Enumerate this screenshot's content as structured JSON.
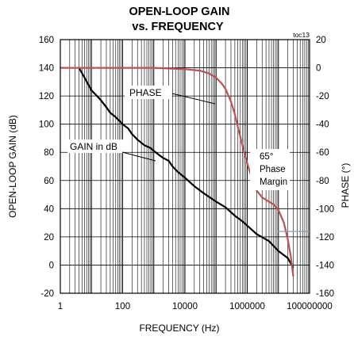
{
  "chart_data": {
    "type": "line",
    "title": "OPEN-LOOP GAIN",
    "subtitle": "vs. FREQUENCY",
    "code": "toc13",
    "xlabel": "FREQUENCY (Hz)",
    "ylabel_left": "OPEN-LOOP GAIN (dB)",
    "ylabel_right": "PHASE (°)",
    "x_scale": "log",
    "xlim": [
      1,
      100000000
    ],
    "x_ticks": [
      1,
      100,
      10000,
      1000000,
      100000000
    ],
    "x_tick_labels": [
      "1",
      "100",
      "10000",
      "1000000",
      "100000000"
    ],
    "ylim_left": [
      -20,
      160
    ],
    "y_ticks_left": [
      -20,
      0,
      20,
      40,
      60,
      80,
      100,
      120,
      140,
      160
    ],
    "ylim_right": [
      -160,
      20
    ],
    "y_ticks_right": [
      -160,
      -140,
      -120,
      -100,
      -80,
      -60,
      -40,
      -20,
      0,
      20
    ],
    "grid": true,
    "series": [
      {
        "name": "GAIN in dB",
        "axis": "left",
        "color": "#000000",
        "x": [
          4,
          6,
          8,
          10,
          15,
          20,
          30,
          40,
          60,
          100,
          150,
          200,
          300,
          500,
          800,
          1000,
          1500,
          2000,
          3000,
          4000,
          6000,
          10000,
          20000,
          40000,
          100000,
          200000,
          400000,
          700000,
          1000000,
          2000000,
          5000000,
          10000000,
          20000000,
          30000000
        ],
        "y": [
          140,
          133,
          128,
          124,
          120,
          117,
          112,
          108,
          105,
          100,
          97,
          93,
          89,
          85,
          83,
          81,
          78,
          76,
          74,
          70,
          66,
          62,
          56,
          51,
          45,
          41,
          35,
          31,
          28,
          22,
          17,
          10,
          5,
          -2
        ]
      },
      {
        "name": "PHASE",
        "axis": "right",
        "color": "#c0504d",
        "x": [
          1,
          100,
          1000,
          10000,
          30000,
          60000,
          100000,
          150000,
          200000,
          300000,
          400000,
          500000,
          700000,
          1000000,
          1500000,
          2000000,
          3000000,
          5000000,
          7000000,
          10000000,
          15000000,
          20000000,
          25000000,
          30000000
        ],
        "y": [
          0,
          0,
          0,
          -1,
          -2,
          -4,
          -7,
          -11,
          -15,
          -24,
          -33,
          -42,
          -55,
          -68,
          -80,
          -87,
          -92,
          -95,
          -97,
          -101,
          -110,
          -122,
          -134,
          -148
        ]
      }
    ],
    "annotations": [
      {
        "text": "PHASE",
        "target": "PHASE"
      },
      {
        "text": "GAIN in dB",
        "target": "GAIN in dB"
      },
      {
        "lines": [
          "65°",
          "Phase",
          "Margin"
        ]
      }
    ]
  }
}
